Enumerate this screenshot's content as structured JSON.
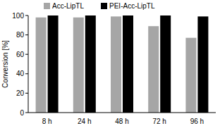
{
  "chart_data": {
    "type": "bar",
    "y_label": "Conversion [%]",
    "categories": [
      "8 h",
      "24 h",
      "48 h",
      "72 h",
      "96 h"
    ],
    "series": [
      {
        "name": "Acc-LipTL",
        "color": "#a6a6a6",
        "values": [
          98,
          98,
          99,
          89,
          77
        ]
      },
      {
        "name": "PEI-Acc-LipTL",
        "color": "#000000",
        "values": [
          100,
          100,
          100,
          100,
          99
        ]
      }
    ],
    "ylim": [
      0,
      100
    ],
    "yticks": [
      0,
      20,
      40,
      60,
      80,
      100
    ],
    "grid": false,
    "legend": "top"
  }
}
